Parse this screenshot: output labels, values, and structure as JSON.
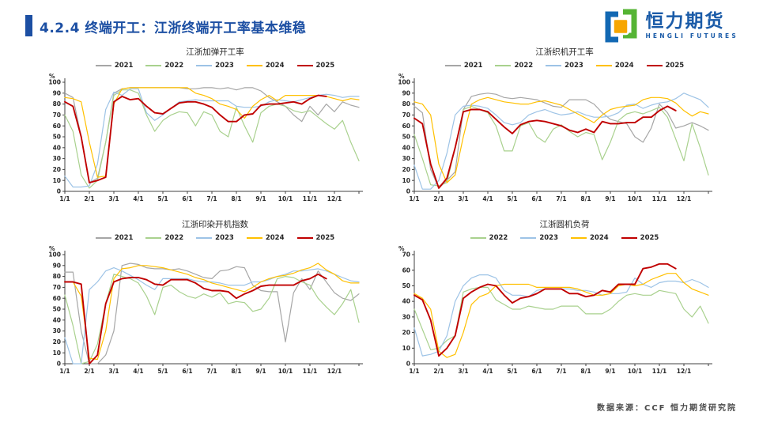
{
  "header": {
    "title": "4.2.4 终端开工：江浙终端开工率基本维稳"
  },
  "logo": {
    "name": "恒力期货",
    "subname": "HENGLI FUTURES"
  },
  "footer": {
    "source": "数据来源：CCF 恒力期货研究院"
  },
  "colors": {
    "accent": "#1C4FA3",
    "axis": "#404040",
    "series": {
      "2021": "#A6A6A6",
      "2022": "#A9D18E",
      "2023": "#9DC3E6",
      "2024": "#FFC000",
      "2025": "#C00000"
    }
  },
  "chart_data": [
    {
      "type": "line",
      "title": "江浙加弹开工率",
      "unit": "%",
      "ylim": [
        0,
        100
      ],
      "ytick_step": 10,
      "x_labels": [
        "1/1",
        "2/1",
        "3/1",
        "4/1",
        "5/1",
        "6/1",
        "7/1",
        "8/1",
        "9/1",
        "10/1",
        "11/1",
        "12/1"
      ],
      "points_total": 37,
      "legend_position": "top",
      "grid": false,
      "series": [
        {
          "name": "2021",
          "values": [
            90,
            86,
            50,
            8,
            12,
            45,
            90,
            94,
            95,
            95,
            95,
            95,
            95,
            95,
            95,
            94,
            94,
            95,
            95,
            94,
            95,
            93,
            95,
            95,
            92,
            86,
            82,
            78,
            70,
            64,
            78,
            70,
            80,
            73,
            82,
            79,
            77
          ]
        },
        {
          "name": "2022",
          "values": [
            70,
            55,
            15,
            3,
            10,
            45,
            88,
            93,
            93,
            90,
            70,
            55,
            65,
            70,
            73,
            72,
            60,
            73,
            70,
            55,
            50,
            77,
            60,
            45,
            72,
            78,
            80,
            78,
            74,
            72,
            74,
            68,
            62,
            57,
            65,
            45,
            28
          ]
        },
        {
          "name": "2023",
          "values": [
            14,
            4,
            4,
            5,
            25,
            75,
            91,
            88,
            94,
            94,
            72,
            65,
            70,
            76,
            82,
            83,
            84,
            83,
            83,
            83,
            83,
            78,
            77,
            77,
            78,
            82,
            84,
            83,
            82,
            84,
            86,
            88,
            89,
            88,
            86,
            87,
            87
          ]
        },
        {
          "name": "2024",
          "values": [
            86,
            85,
            82,
            45,
            13,
            14,
            80,
            94,
            95,
            95,
            95,
            95,
            95,
            95,
            95,
            95,
            90,
            88,
            85,
            80,
            78,
            75,
            67,
            78,
            84,
            88,
            83,
            88,
            88,
            88,
            88,
            88,
            87,
            85,
            83,
            85,
            84
          ]
        },
        {
          "name": "2025",
          "values": [
            82,
            78,
            50,
            8,
            10,
            13,
            82,
            87,
            84,
            85,
            78,
            72,
            71,
            76,
            81,
            82,
            82,
            80,
            77,
            70,
            64,
            64,
            70,
            71,
            79,
            80,
            80,
            81,
            82,
            80,
            85,
            88,
            87
          ]
        }
      ]
    },
    {
      "type": "line",
      "title": "江浙织机开工率",
      "unit": "%",
      "ylim": [
        0,
        100
      ],
      "ytick_step": 10,
      "x_labels": [
        "1/1",
        "2/1",
        "3/1",
        "4/1",
        "5/1",
        "6/1",
        "7/1",
        "8/1",
        "9/1",
        "10/1",
        "11/1",
        "12/1"
      ],
      "points_total": 37,
      "legend_position": "top",
      "grid": false,
      "series": [
        {
          "name": "2021",
          "values": [
            78,
            72,
            20,
            3,
            10,
            18,
            75,
            87,
            89,
            90,
            89,
            86,
            85,
            86,
            85,
            84,
            81,
            78,
            77,
            84,
            84,
            84,
            80,
            72,
            66,
            64,
            62,
            50,
            45,
            58,
            80,
            72,
            58,
            60,
            63,
            60,
            56
          ]
        },
        {
          "name": "2022",
          "values": [
            52,
            30,
            6,
            5,
            8,
            40,
            75,
            78,
            75,
            72,
            60,
            37,
            37,
            60,
            63,
            50,
            45,
            57,
            61,
            55,
            50,
            54,
            52,
            29,
            45,
            65,
            71,
            73,
            71,
            74,
            77,
            68,
            48,
            28,
            62,
            40,
            15
          ]
        },
        {
          "name": "2023",
          "values": [
            24,
            2,
            2,
            10,
            35,
            70,
            78,
            79,
            78,
            76,
            70,
            63,
            61,
            63,
            70,
            73,
            75,
            72,
            70,
            71,
            73,
            70,
            68,
            68,
            69,
            72,
            79,
            80,
            76,
            79,
            81,
            82,
            85,
            90,
            87,
            84,
            77
          ]
        },
        {
          "name": "2024",
          "values": [
            82,
            80,
            70,
            25,
            8,
            15,
            50,
            80,
            84,
            86,
            84,
            82,
            81,
            80,
            80,
            82,
            83,
            81,
            79,
            75,
            71,
            67,
            63,
            70,
            75,
            77,
            78,
            79,
            84,
            86,
            86,
            85,
            81,
            74,
            69,
            73,
            71
          ]
        },
        {
          "name": "2025",
          "values": [
            67,
            62,
            25,
            3,
            12,
            40,
            73,
            75,
            75,
            73,
            66,
            59,
            53,
            61,
            64,
            65,
            64,
            62,
            60,
            56,
            54,
            57,
            54,
            64,
            62,
            62,
            63,
            63,
            68,
            68,
            74,
            78,
            74
          ]
        }
      ]
    },
    {
      "type": "line",
      "title": "江浙印染开机指数",
      "unit": "%",
      "ylim": [
        0,
        100
      ],
      "ytick_step": 10,
      "x_labels": [
        "1/1",
        "2/1",
        "3/1",
        "4/1",
        "5/1",
        "6/1",
        "7/1",
        "8/1",
        "9/1",
        "10/1",
        "11/1",
        "12/1"
      ],
      "points_total": 37,
      "legend_position": "top",
      "grid": false,
      "series": [
        {
          "name": "2021",
          "values": [
            84,
            84,
            30,
            0,
            0,
            8,
            30,
            90,
            92,
            91,
            88,
            87,
            87,
            86,
            87,
            85,
            82,
            79,
            78,
            85,
            86,
            89,
            88,
            72,
            67,
            66,
            66,
            20,
            65,
            78,
            68,
            85,
            75,
            65,
            60,
            58,
            64
          ]
        },
        {
          "name": "2022",
          "values": [
            63,
            35,
            0,
            2,
            18,
            55,
            82,
            80,
            78,
            74,
            62,
            45,
            70,
            72,
            66,
            62,
            60,
            64,
            61,
            65,
            55,
            57,
            56,
            48,
            50,
            60,
            78,
            80,
            79,
            75,
            72,
            60,
            52,
            45,
            55,
            68,
            38
          ]
        },
        {
          "name": "2023",
          "values": [
            24,
            0,
            0,
            68,
            75,
            85,
            88,
            85,
            81,
            77,
            72,
            68,
            78,
            78,
            78,
            78,
            76,
            75,
            75,
            74,
            72,
            72,
            72,
            75,
            75,
            77,
            80,
            82,
            85,
            85,
            86,
            87,
            85,
            82,
            79,
            76,
            75
          ]
        },
        {
          "name": "2024",
          "values": [
            75,
            75,
            62,
            5,
            4,
            30,
            78,
            87,
            88,
            90,
            90,
            89,
            88,
            86,
            84,
            82,
            79,
            77,
            74,
            72,
            70,
            68,
            66,
            70,
            75,
            78,
            80,
            81,
            83,
            86,
            88,
            92,
            86,
            82,
            76,
            74,
            74
          ]
        },
        {
          "name": "2025",
          "values": [
            75,
            75,
            73,
            0,
            8,
            55,
            75,
            78,
            79,
            79,
            77,
            73,
            72,
            77,
            77,
            77,
            74,
            69,
            67,
            67,
            66,
            60,
            64,
            67,
            71,
            72,
            72,
            72,
            72,
            76,
            78,
            82,
            78
          ]
        }
      ]
    },
    {
      "type": "line",
      "title": "江浙圆机负荷",
      "unit": "%",
      "ylim": [
        0,
        70
      ],
      "ytick_step": 10,
      "x_labels": [
        "1/1",
        "2/1",
        "3/1",
        "4/1",
        "5/1",
        "6/1",
        "7/1",
        "8/1",
        "9/1",
        "10/1",
        "11/1",
        "12/1"
      ],
      "points_total": 37,
      "legend_position": "top",
      "grid": false,
      "series": [
        {
          "name": "2022",
          "values": [
            35,
            22,
            9,
            10,
            15,
            18,
            46,
            48,
            49,
            49,
            41,
            38,
            35,
            35,
            37,
            36,
            35,
            35,
            37,
            37,
            37,
            32,
            32,
            32,
            35,
            40,
            44,
            45,
            44,
            44,
            47,
            46,
            45,
            35,
            30,
            37,
            26
          ]
        },
        {
          "name": "2023",
          "values": [
            23,
            5,
            6,
            8,
            18,
            40,
            50,
            55,
            57,
            57,
            55,
            47,
            44,
            44,
            43,
            47,
            48,
            48,
            48,
            48,
            47,
            47,
            46,
            44,
            45,
            45,
            46,
            55,
            51,
            49,
            52,
            53,
            53,
            52,
            54,
            52,
            49
          ]
        },
        {
          "name": "2024",
          "values": [
            45,
            42,
            35,
            8,
            4,
            6,
            20,
            38,
            43,
            45,
            50,
            51,
            51,
            51,
            51,
            49,
            49,
            49,
            49,
            49,
            48,
            46,
            44,
            44,
            45,
            50,
            51,
            50,
            51,
            54,
            56,
            58,
            58,
            52,
            48,
            46,
            44
          ]
        },
        {
          "name": "2025",
          "values": [
            44,
            41,
            28,
            5,
            10,
            18,
            42,
            46,
            49,
            51,
            50,
            44,
            39,
            42,
            43,
            45,
            48,
            48,
            48,
            45,
            45,
            43,
            44,
            47,
            46,
            51,
            51,
            51,
            61,
            62,
            64,
            64,
            61
          ]
        }
      ]
    }
  ]
}
